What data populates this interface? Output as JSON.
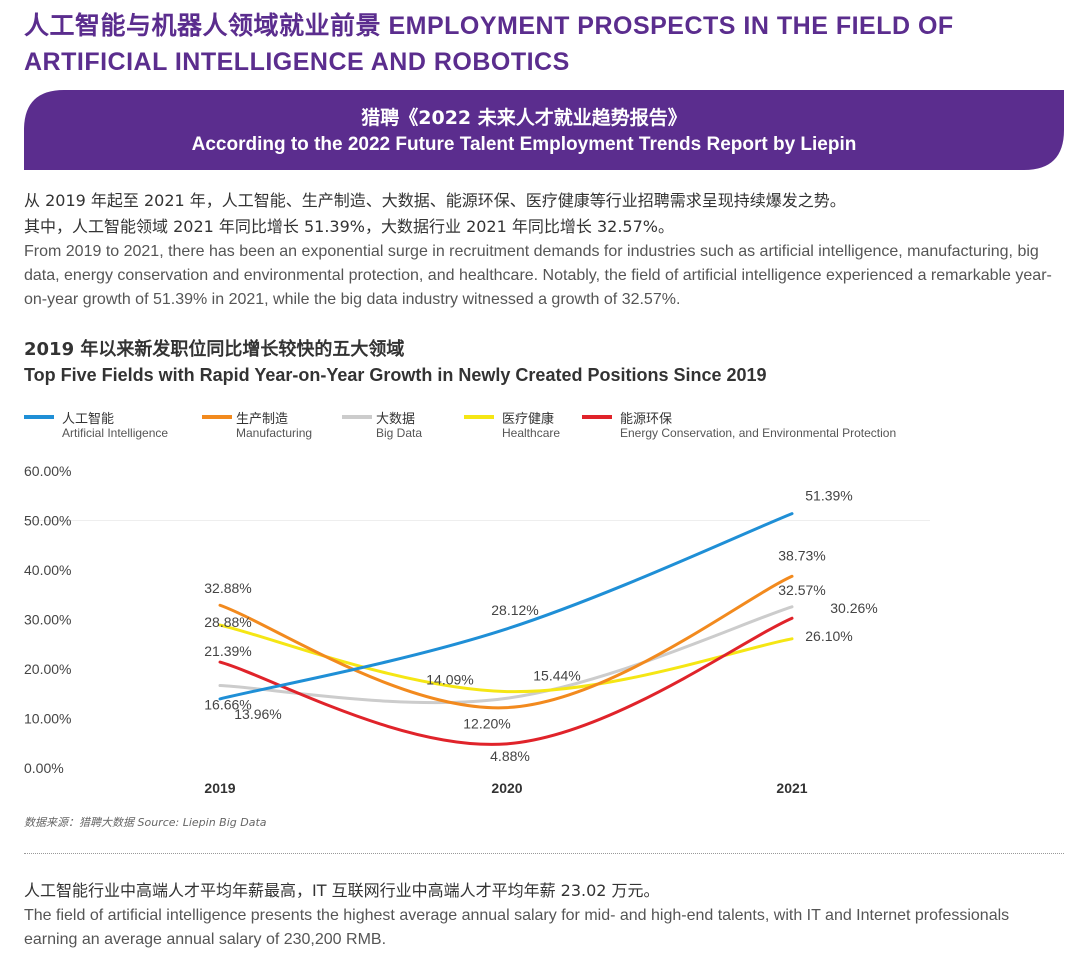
{
  "header": {
    "title": "人工智能与机器人领域就业前景 EMPLOYMENT PROSPECTS IN THE FIELD OF ARTIFICIAL INTELLIGENCE AND ROBOTICS"
  },
  "banner": {
    "line_zh": "猎聘《2022 未来人才就业趋势报告》",
    "line_en": "According to the 2022 Future Talent Employment Trends Report by Liepin",
    "color": "#5b2d8e"
  },
  "intro": {
    "zh_line1": "从 2019 年起至 2021 年，人工智能、生产制造、大数据、能源环保、医疗健康等行业招聘需求呈现持续爆发之势。",
    "zh_line2": "其中，人工智能领域 2021 年同比增长 51.39%，大数据行业 2021 年同比增长 32.57%。",
    "en": "From 2019 to 2021, there has been an exponential surge in recruitment demands for industries such as artificial intelligence, manufacturing, big data, energy conservation and environmental protection, and healthcare. Notably, the field of artificial intelligence experienced a remarkable year-on-year growth of 51.39% in 2021, while the big data industry witnessed a growth of 32.57%."
  },
  "chart_data": {
    "type": "line",
    "title_zh": "2019 年以来新发职位同比增长较快的五大领域",
    "title_en": "Top Five Fields with Rapid Year-on-Year Growth in Newly Created Positions Since 2019",
    "categories": [
      "2019",
      "2020",
      "2021"
    ],
    "ylim": [
      0,
      60
    ],
    "yticks": [
      "0.00%",
      "10.00%",
      "20.00%",
      "30.00%",
      "40.00%",
      "50.00%",
      "60.00%"
    ],
    "grid": false,
    "legend_position": "top",
    "series": [
      {
        "name_zh": "人工智能",
        "name_en": "Artificial Intelligence",
        "color": "#1f8fd6",
        "values": [
          13.96,
          28.12,
          51.39
        ],
        "labels": [
          "13.96%",
          "28.12%",
          "51.39%"
        ]
      },
      {
        "name_zh": "生产制造",
        "name_en": "Manufacturing",
        "color": "#f28a1e",
        "values": [
          32.88,
          12.2,
          38.73
        ],
        "labels": [
          "32.88%",
          "12.20%",
          "38.73%"
        ]
      },
      {
        "name_zh": "大数据",
        "name_en": "Big Data",
        "color": "#cccccc",
        "values": [
          16.66,
          14.09,
          32.57
        ],
        "labels": [
          "16.66%",
          "14.09%",
          "32.57%"
        ]
      },
      {
        "name_zh": "医疗健康",
        "name_en": "Healthcare",
        "color": "#f5e614",
        "values": [
          28.88,
          15.44,
          26.1
        ],
        "labels": [
          "28.88%",
          "15.44%",
          "26.10%"
        ]
      },
      {
        "name_zh": "能源环保",
        "name_en": "Energy Conservation, and Environmental Protection",
        "color": "#e0232a",
        "values": [
          21.39,
          4.88,
          30.26
        ],
        "labels": [
          "21.39%",
          "4.88%",
          "30.26%"
        ]
      }
    ],
    "source": "数据来源：猎聘大数据  Source: Liepin Big Data"
  },
  "salary": {
    "zh": "人工智能行业中高端人才平均年薪最高，IT 互联网行业中高端人才平均年薪 23.02 万元。",
    "en": "The field of artificial intelligence presents the highest average annual salary for mid- and high-end talents, with IT and Internet professionals earning an average annual salary of 230,200 RMB."
  }
}
